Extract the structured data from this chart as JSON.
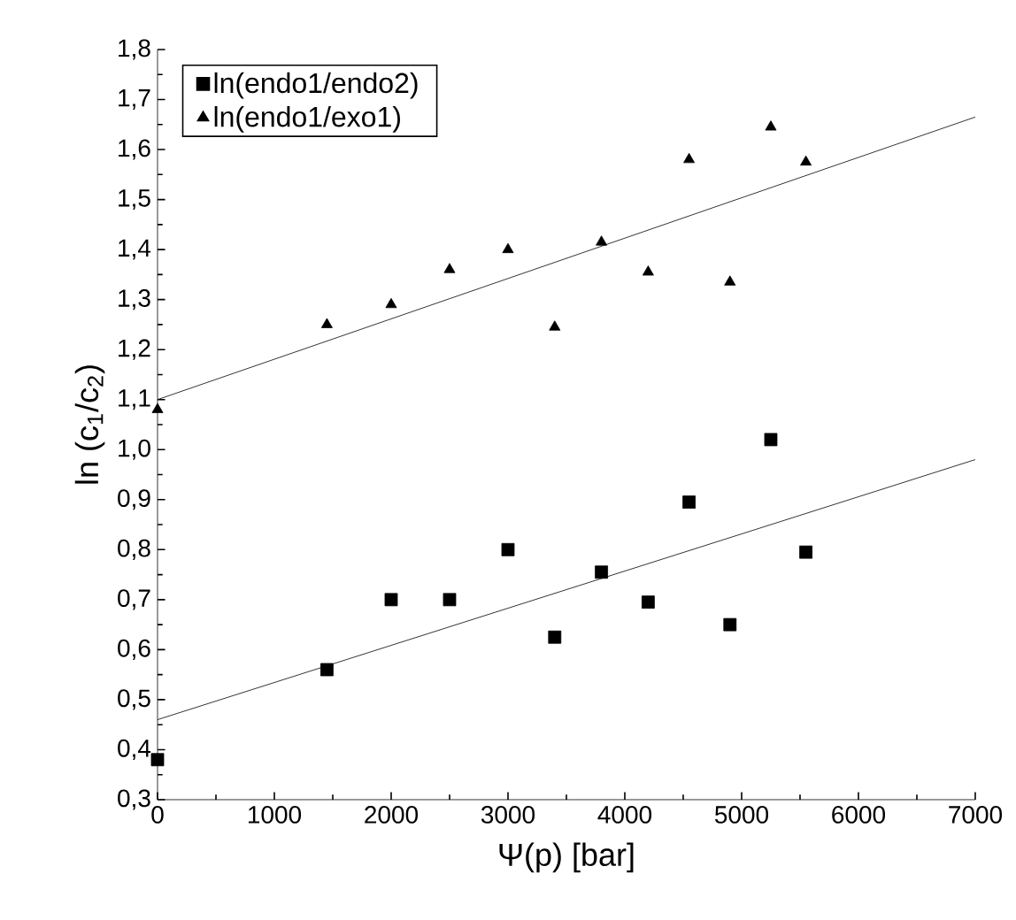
{
  "chart_data": {
    "type": "scatter",
    "xlabel": "Ψ(p) [bar]",
    "ylabel": "ln (c$_{1}$/c$_{2}$)",
    "xlim": [
      0,
      7000
    ],
    "ylim": [
      0.3,
      1.8
    ],
    "xticks": [
      0,
      1000,
      2000,
      3000,
      4000,
      5000,
      6000,
      7000
    ],
    "yticks": [
      {
        "value": 0.3,
        "label": "0,3"
      },
      {
        "value": 0.4,
        "label": "0,4"
      },
      {
        "value": 0.5,
        "label": "0,5"
      },
      {
        "value": 0.6,
        "label": "0,6"
      },
      {
        "value": 0.7,
        "label": "0,7"
      },
      {
        "value": 0.8,
        "label": "0,8"
      },
      {
        "value": 0.9,
        "label": "0,9"
      },
      {
        "value": 1.0,
        "label": "1,0"
      },
      {
        "value": 1.1,
        "label": "1,1"
      },
      {
        "value": 1.2,
        "label": "1,2"
      },
      {
        "value": 1.3,
        "label": "1,3"
      },
      {
        "value": 1.4,
        "label": "1,4"
      },
      {
        "value": 1.5,
        "label": "1,5"
      },
      {
        "value": 1.6,
        "label": "1,6"
      },
      {
        "value": 1.7,
        "label": "1,7"
      },
      {
        "value": 1.8,
        "label": "1,8"
      }
    ],
    "legend": "top left",
    "grid": false,
    "series": [
      {
        "name": "ln(endo1/endo2)",
        "marker": "square",
        "color": "#000000",
        "x": [
          0,
          1450,
          2000,
          2500,
          3000,
          3400,
          3800,
          4200,
          4550,
          4900,
          5250,
          5550
        ],
        "values": [
          0.38,
          0.56,
          0.7,
          0.7,
          0.8,
          0.625,
          0.755,
          0.695,
          0.895,
          0.65,
          1.02,
          0.795
        ]
      },
      {
        "name": "ln(endo1/exo1)",
        "marker": "triangle",
        "color": "#000000",
        "x": [
          0,
          1450,
          2000,
          2500,
          3000,
          3400,
          3800,
          4200,
          4550,
          4900,
          5250,
          5550
        ],
        "values": [
          1.08,
          1.25,
          1.29,
          1.36,
          1.4,
          1.245,
          1.415,
          1.355,
          1.58,
          1.335,
          1.645,
          1.575
        ]
      },
      {
        "type": "line",
        "marker": "none",
        "color": "#000000",
        "x": [
          0,
          7000
        ],
        "values": [
          0.46,
          0.98
        ]
      },
      {
        "type": "line",
        "marker": "none",
        "color": "#000000",
        "x": [
          0,
          7000
        ],
        "values": [
          1.1,
          1.665
        ]
      }
    ]
  }
}
